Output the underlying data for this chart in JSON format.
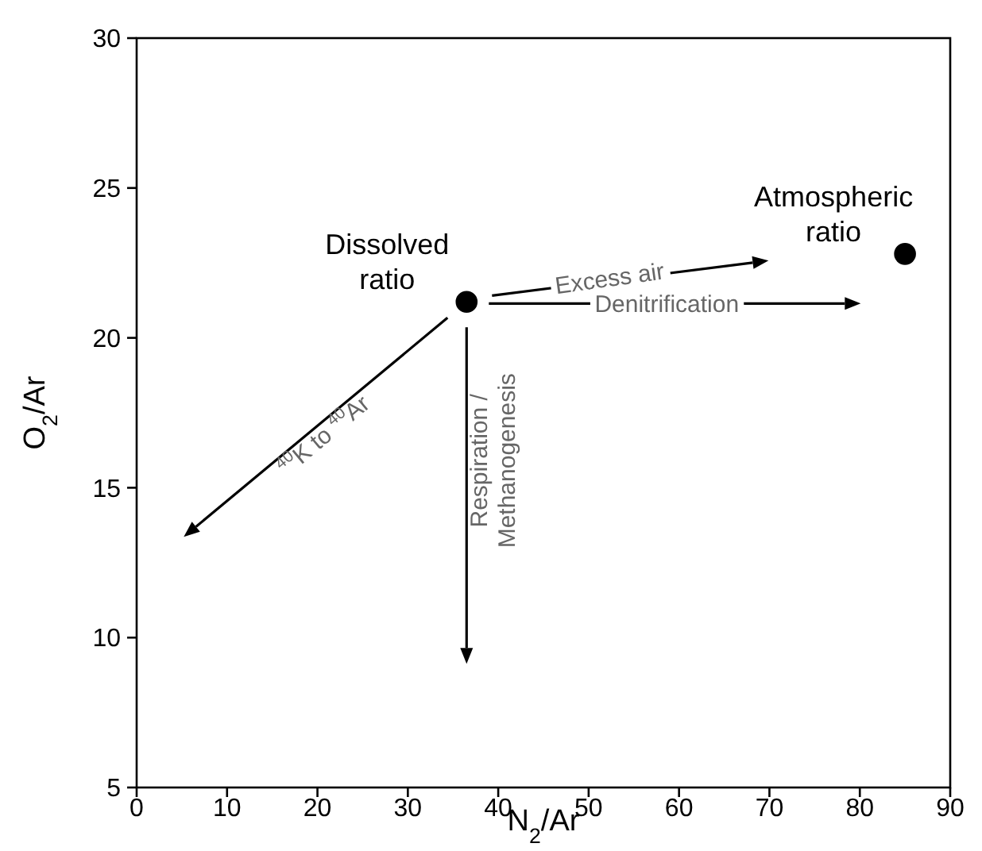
{
  "chart_data": {
    "type": "scatter",
    "xlabel": "N$_{2}$/Ar",
    "ylabel": "O$_{2}$/Ar",
    "xlim": [
      0,
      90
    ],
    "ylim": [
      5,
      30
    ],
    "xticks": [
      0,
      10,
      20,
      30,
      40,
      50,
      60,
      70,
      80,
      90
    ],
    "yticks": [
      5,
      10,
      15,
      20,
      25,
      30
    ],
    "marker": "circle",
    "series": [
      {
        "color": "#000000",
        "x": [
          36.5,
          85
        ],
        "values": [
          21.2,
          22.8
        ]
      }
    ],
    "annotations": [
      {
        "text": "Dissolved ratio",
        "x": 36.5,
        "y": 21.2
      },
      {
        "text": "Atmospheric ratio",
        "x": 85,
        "y": 22.8
      },
      "Excess air",
      "Denitrification",
      "Respiration / Methanogenesis",
      "$^{40}$K to $^{40}$Ar"
    ]
  }
}
